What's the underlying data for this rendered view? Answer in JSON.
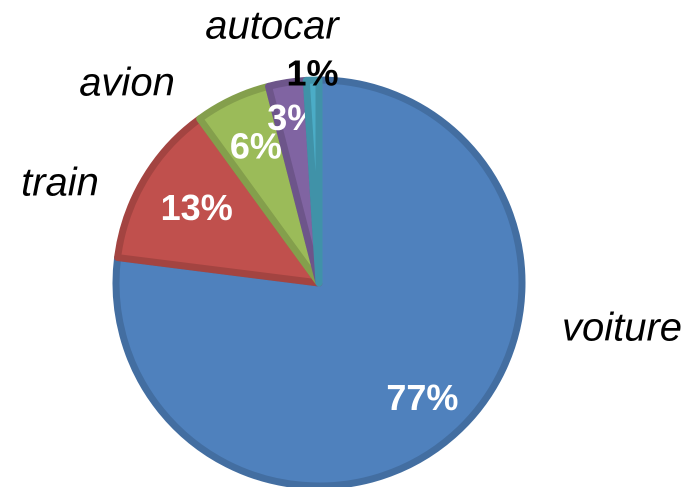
{
  "chart_data": {
    "type": "pie",
    "categories": [
      "voiture",
      "train",
      "avion",
      "autocar",
      null
    ],
    "values": [
      77,
      13,
      6,
      3,
      1
    ],
    "value_labels": [
      "77%",
      "13%",
      "6%",
      "3%",
      "1%"
    ],
    "colors": [
      "#4f81bd",
      "#c0504d",
      "#9bbb59",
      "#8064a2",
      "#4bacc6"
    ]
  }
}
